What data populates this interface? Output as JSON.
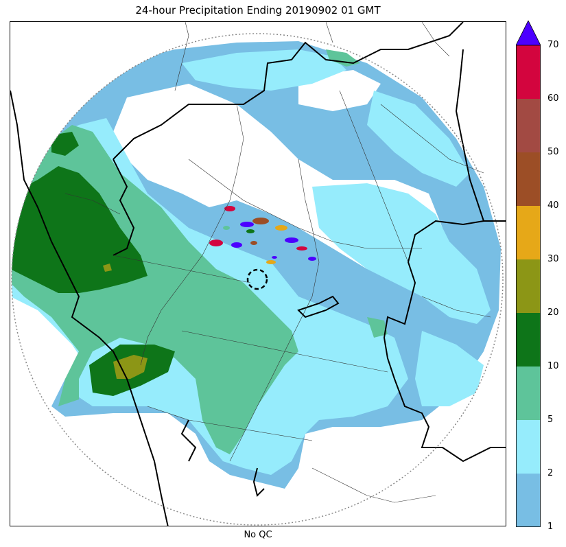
{
  "title": "24-hour Precipitation Ending 20190902 01 GMT",
  "xlabel": "No QC",
  "colorbar": {
    "levels": [
      1,
      2,
      5,
      10,
      20,
      30,
      40,
      50,
      60,
      70
    ],
    "tick_labels": [
      "1",
      "2",
      "5",
      "10",
      "20",
      "30",
      "40",
      "50",
      "60",
      "70"
    ],
    "colors": [
      "#78bee4",
      "#96ecfc",
      "#5ec49a",
      "#0e7519",
      "#8c9616",
      "#e6a818",
      "#9c4e26",
      "#a24a43",
      "#d3053e"
    ],
    "extend_color": "#4c00ff",
    "extend": "max"
  },
  "map": {
    "colors": {
      "light_blue": "#78bee4",
      "cyan": "#96ecfc",
      "light_green": "#5ec49a",
      "dark_green": "#0e7519",
      "olive": "#8c9616",
      "orange": "#e6a818",
      "brown": "#9c4e26",
      "red": "#d3053e",
      "violet": "#4c00ff",
      "border": "#000000",
      "range_ring": "#888888"
    }
  }
}
